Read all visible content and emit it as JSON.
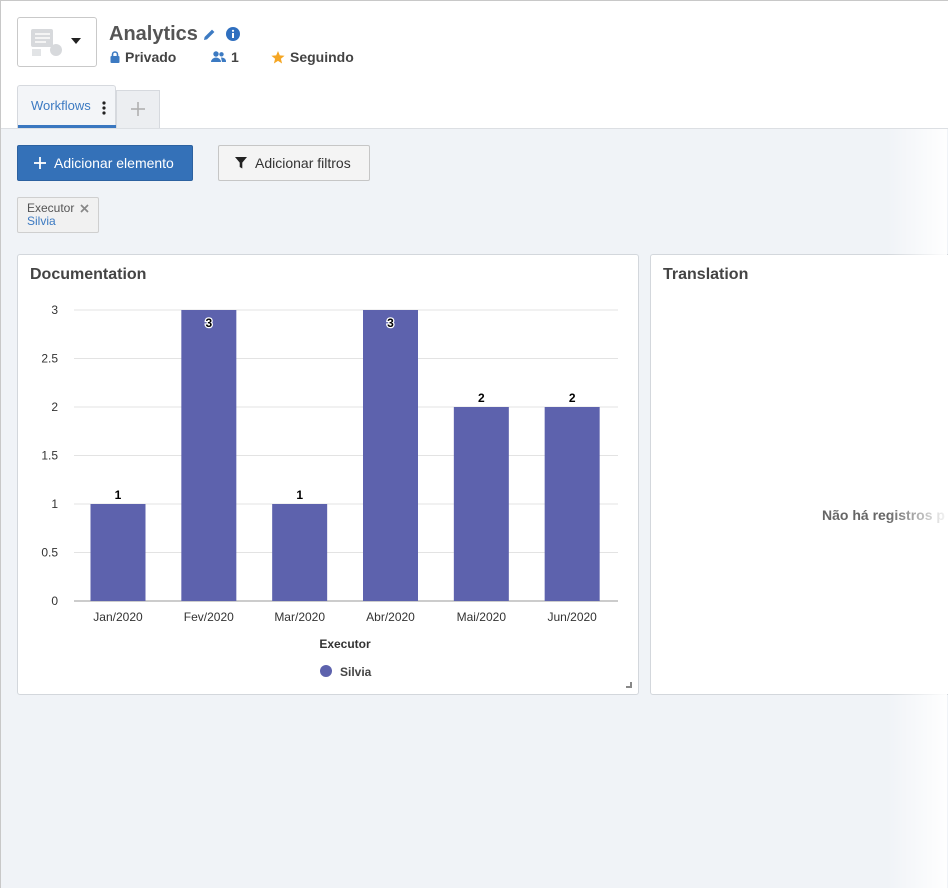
{
  "header": {
    "title": "Analytics",
    "privacy": "Privado",
    "members": "1",
    "following": "Seguindo"
  },
  "tabs": [
    {
      "label": "Workflows",
      "active": true
    }
  ],
  "toolbar": {
    "add_element": "Adicionar elemento",
    "add_filters": "Adicionar filtros"
  },
  "filter_chip": {
    "key": "Executor",
    "value": "Silvia"
  },
  "panels": [
    {
      "title": "Documentation"
    },
    {
      "title": "Translation",
      "empty_message": "Não há registros p"
    }
  ],
  "colors": {
    "primary": "#3471b8",
    "bar": "#5d62ad",
    "star": "#f5a623",
    "link": "#3c7ac2"
  },
  "icons": [
    "dashboard-icon",
    "chevron-down-icon",
    "pencil-icon",
    "info-icon",
    "lock-icon",
    "users-icon",
    "star-icon",
    "kebab-icon",
    "plus-icon",
    "filter-icon",
    "close-icon",
    "resize-icon"
  ],
  "chart_data": {
    "type": "bar",
    "title": "Documentation",
    "categories": [
      "Jan/2020",
      "Fev/2020",
      "Mar/2020",
      "Abr/2020",
      "Mai/2020",
      "Jun/2020"
    ],
    "series": [
      {
        "name": "Silvia",
        "values": [
          1,
          3,
          1,
          3,
          2,
          2
        ]
      }
    ],
    "data_labels": [
      "1",
      "3",
      "1",
      "3",
      "2",
      "2"
    ],
    "xlabel": "Executor",
    "ylabel": "",
    "ylim": [
      0,
      3
    ],
    "yticks": [
      "0",
      "0.5",
      "1",
      "1.5",
      "2",
      "2.5",
      "3"
    ],
    "grid": true,
    "legend": "bottom-center"
  }
}
